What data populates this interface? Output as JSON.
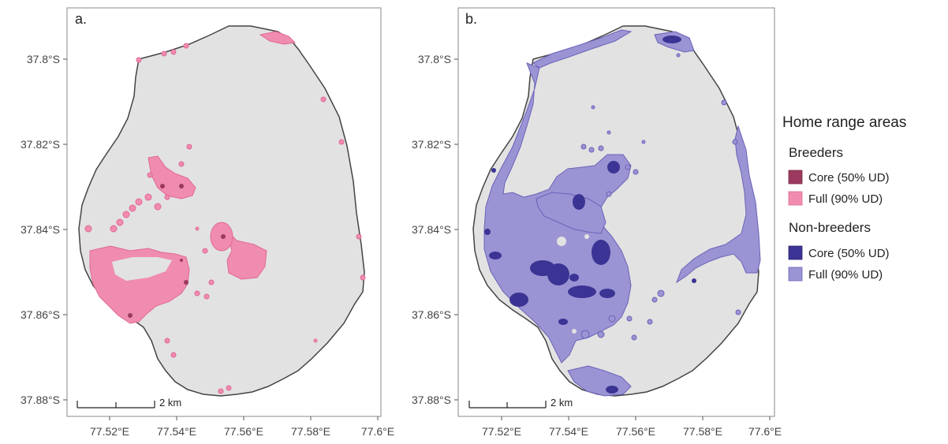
{
  "panels": [
    {
      "tag": "a.",
      "y_ticks": [
        "37.8°S",
        "37.82°S",
        "37.84°S",
        "37.86°S",
        "37.88°S"
      ],
      "x_ticks": [
        "77.52°E",
        "77.54°E",
        "77.56°E",
        "77.58°E",
        "77.6°E"
      ],
      "scale_label": "2 km"
    },
    {
      "tag": "b.",
      "y_ticks": [
        "37.8°S",
        "37.82°S",
        "37.84°S",
        "37.86°S",
        "37.88°S"
      ],
      "x_ticks": [
        "77.52°E",
        "77.54°E",
        "77.56°E",
        "77.58°E",
        "77.6°E"
      ],
      "scale_label": "2 km"
    }
  ],
  "legend": {
    "title": "Home range areas",
    "groups": [
      {
        "name": "Breeders",
        "items": [
          {
            "label": "Core (50% UD)",
            "color": "#9b3a5e"
          },
          {
            "label": "Full (90% UD)",
            "color": "#f08cb0"
          }
        ]
      },
      {
        "name": "Non-breeders",
        "items": [
          {
            "label": "Core (50% UD)",
            "color": "#3c3494"
          },
          {
            "label": "Full (90% UD)",
            "color": "#9b94d4"
          }
        ]
      }
    ]
  },
  "colors": {
    "land": "#e2e2e2",
    "coast": "#555555",
    "breeder_full": "#f08cb0",
    "breeder_core": "#9b3a5e",
    "nonbreeder_full": "#9b94d4",
    "nonbreeder_core": "#3c3494"
  }
}
